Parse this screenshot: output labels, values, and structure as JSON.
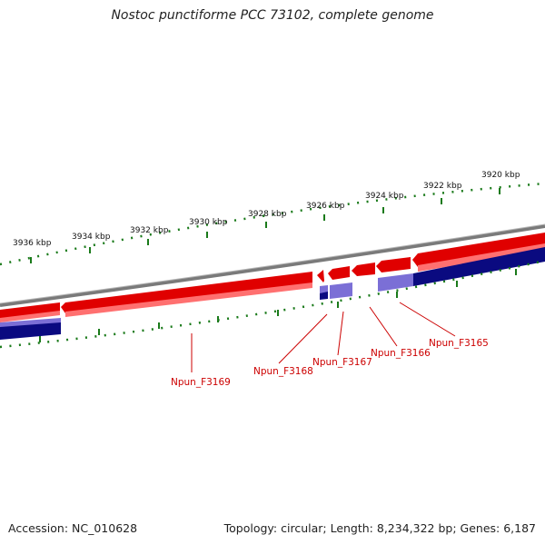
{
  "title": "Nostoc punctiforme PCC 73102, complete genome",
  "footer": {
    "accession": "Accession: NC_010628",
    "summary": "Topology: circular; Length: 8,234,322 bp; Genes: 6,187"
  },
  "colors": {
    "forward_gene": "#e00000",
    "forward_gene_light": "#ff7070",
    "reverse_gene": "#0a0a80",
    "reverse_gene_light": "#7b6fd6",
    "backbone": "#7a7a7a",
    "tick": "#1a7a1a",
    "label": "#cc0000"
  },
  "scale": {
    "labels": [
      "3936 kbp",
      "3934 kbp",
      "3932 kbp",
      "3930 kbp",
      "3928 kbp",
      "3926 kbp",
      "3924 kbp",
      "3922 kbp",
      "3920 kbp"
    ]
  },
  "genes": [
    {
      "name": "Npun_F3169",
      "strand": "forward"
    },
    {
      "name": "Npun_F3168",
      "strand": "forward"
    },
    {
      "name": "Npun_F3167",
      "strand": "reverse"
    },
    {
      "name": "Npun_F3166",
      "strand": "forward"
    },
    {
      "name": "Npun_F3165",
      "strand": "forward"
    }
  ]
}
